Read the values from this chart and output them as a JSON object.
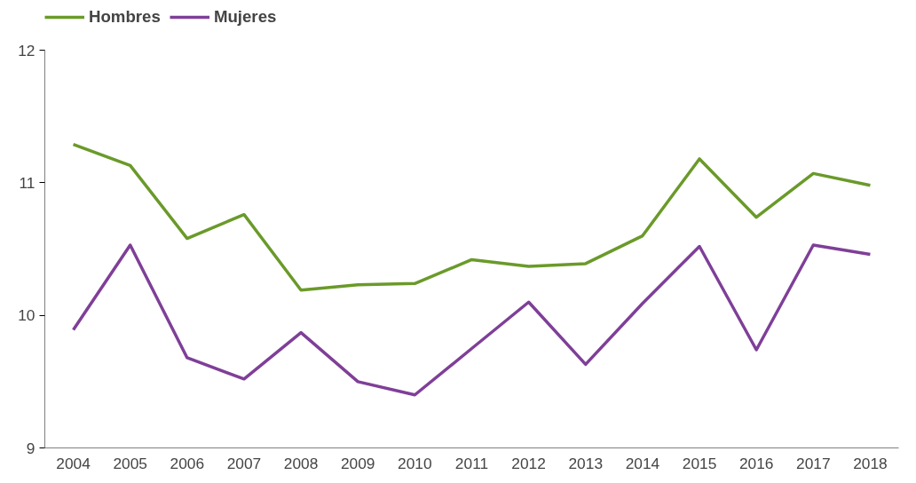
{
  "chart_data": {
    "type": "line",
    "categories": [
      "2004",
      "2005",
      "2006",
      "2007",
      "2008",
      "2009",
      "2010",
      "2011",
      "2012",
      "2013",
      "2014",
      "2015",
      "2016",
      "2017",
      "2018"
    ],
    "series": [
      {
        "name": "Hombres",
        "color": "#6a9a2a",
        "values": [
          11.29,
          11.13,
          10.58,
          10.76,
          10.19,
          10.23,
          10.24,
          10.42,
          10.37,
          10.39,
          10.6,
          11.18,
          10.74,
          11.07,
          10.98
        ]
      },
      {
        "name": "Mujeres",
        "color": "#7f3f98",
        "values": [
          9.89,
          10.53,
          9.68,
          9.52,
          9.87,
          9.5,
          9.4,
          9.75,
          10.1,
          9.63,
          10.09,
          10.52,
          9.74,
          10.53,
          10.46
        ]
      }
    ],
    "ylim": [
      9,
      12
    ],
    "yticks": [
      9,
      10,
      11,
      12
    ],
    "grid": false,
    "legend": "top left",
    "line_style": "solid"
  }
}
